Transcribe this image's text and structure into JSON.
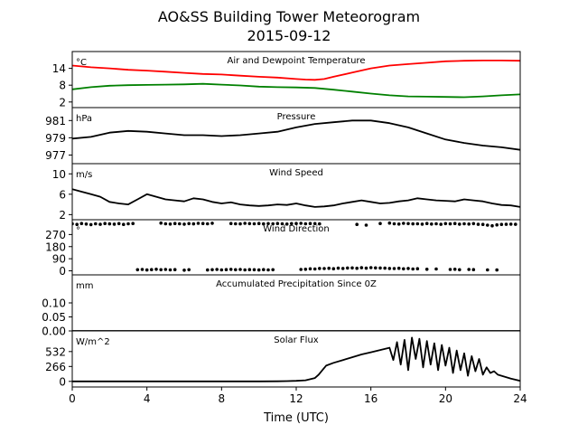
{
  "chart_data": {
    "type": "line",
    "title": "AO&SS Building Tower Meteorogram",
    "subtitle": "2015-09-12",
    "xlabel": "Time (UTC)",
    "xlim": [
      0,
      24
    ],
    "xticks": [
      "0",
      "4",
      "8",
      "12",
      "16",
      "20",
      "24"
    ],
    "panels": [
      {
        "id": "temperature",
        "title": "Air and Dewpoint Temperature",
        "unit": "°C",
        "ylim": [
          0,
          20
        ],
        "yticks": [
          "14",
          "8",
          "2"
        ],
        "series": [
          {
            "color": "#ff0000",
            "x": [
              0,
              1,
              2,
              3,
              4,
              5,
              6,
              7,
              8,
              9,
              10,
              11,
              12,
              12.5,
              13,
              13.5,
              14,
              15,
              16,
              17,
              18,
              19,
              20,
              21,
              22,
              23,
              24
            ],
            "y": [
              15,
              14.4,
              14,
              13.5,
              13.2,
              12.8,
              12.4,
              12,
              11.8,
              11.4,
              11,
              10.7,
              10.2,
              10,
              9.9,
              10.2,
              11,
              12.5,
              14,
              15,
              15.5,
              16,
              16.5,
              16.7,
              16.8,
              16.8,
              16.7
            ]
          },
          {
            "color": "#008000",
            "x": [
              0,
              1,
              2,
              3,
              4,
              5,
              6,
              7,
              8,
              9,
              10,
              11,
              12,
              13,
              14,
              15,
              16,
              17,
              18,
              19,
              20,
              21,
              22,
              23,
              24
            ],
            "y": [
              6.5,
              7.3,
              7.8,
              8,
              8.1,
              8.2,
              8.3,
              8.5,
              8.2,
              7.9,
              7.5,
              7.3,
              7.2,
              7,
              6.4,
              5.7,
              5,
              4.4,
              4,
              3.9,
              3.8,
              3.7,
              4,
              4.4,
              4.7
            ]
          }
        ]
      },
      {
        "id": "pressure",
        "title": "Pressure",
        "unit": "hPa",
        "ylim": [
          976,
          982.5
        ],
        "yticks": [
          "981",
          "979",
          "977"
        ],
        "series": [
          {
            "color": "#000000",
            "x": [
              0,
              1,
              2,
              3,
              4,
              5,
              6,
              7,
              8,
              9,
              10,
              11,
              12,
              13,
              14,
              15,
              16,
              17,
              18,
              19,
              20,
              21,
              22,
              23,
              24
            ],
            "y": [
              978.9,
              979.1,
              979.6,
              979.8,
              979.7,
              979.5,
              979.3,
              979.3,
              979.2,
              979.3,
              979.5,
              979.7,
              980.2,
              980.6,
              980.8,
              981,
              981,
              980.7,
              980.2,
              979.5,
              978.8,
              978.4,
              978.1,
              977.9,
              977.6
            ]
          }
        ]
      },
      {
        "id": "wind-speed",
        "title": "Wind Speed",
        "unit": "m/s",
        "ylim": [
          1,
          12
        ],
        "yticks": [
          "10",
          "6",
          "2"
        ],
        "series": [
          {
            "color": "#000000",
            "x": [
              0,
              0.5,
              1,
              1.5,
              2,
              2.5,
              3,
              3.5,
              4,
              4.5,
              5,
              5.5,
              6,
              6.5,
              7,
              7.5,
              8,
              8.5,
              9,
              9.5,
              10,
              10.5,
              11,
              11.5,
              12,
              12.5,
              13,
              13.5,
              14,
              14.5,
              15,
              15.5,
              16,
              16.5,
              17,
              17.5,
              18,
              18.5,
              19,
              19.5,
              20,
              20.5,
              21,
              21.5,
              22,
              22.5,
              23,
              23.5,
              24
            ],
            "y": [
              7,
              6.5,
              6,
              5.5,
              4.5,
              4.2,
              4,
              5,
              6,
              5.5,
              5,
              4.8,
              4.6,
              5.2,
              5,
              4.5,
              4.2,
              4.4,
              4,
              3.8,
              3.7,
              3.8,
              4,
              3.9,
              4.2,
              3.8,
              3.5,
              3.6,
              3.8,
              4.2,
              4.5,
              4.8,
              4.5,
              4.2,
              4.3,
              4.6,
              4.8,
              5.2,
              5,
              4.8,
              4.7,
              4.6,
              5,
              4.8,
              4.6,
              4.2,
              3.9,
              3.8,
              3.5
            ]
          }
        ]
      },
      {
        "id": "wind-direction",
        "title": "Wind Direction",
        "unit": "°",
        "ylim": [
          -30,
          380
        ],
        "yticks": [
          "270",
          "180",
          "90",
          "0"
        ],
        "series": [
          {
            "color": "#000000",
            "style": "scatter",
            "x": [
              0,
              0.25,
              0.5,
              0.75,
              1,
              1.25,
              1.5,
              1.75,
              2,
              2.25,
              2.5,
              2.75,
              3,
              3.25,
              4.75,
              5,
              5.25,
              5.5,
              5.75,
              6,
              6.25,
              6.5,
              6.75,
              7,
              7.25,
              7.5,
              8.5,
              8.75,
              9,
              9.25,
              9.5,
              9.75,
              10,
              10.25,
              10.5,
              10.75,
              11,
              11.25,
              11.5,
              11.75,
              12,
              12.25,
              12.5,
              12.75,
              13,
              13.25,
              15.25,
              15.75,
              16.5,
              17,
              17.25,
              17.5,
              17.75,
              18,
              18.25,
              18.5,
              18.75,
              19,
              19.25,
              19.5,
              19.75,
              20,
              20.25,
              20.5,
              20.75,
              21,
              21.25,
              21.5,
              21.75,
              22,
              22.25,
              22.5,
              22.75,
              23,
              23.25,
              23.5,
              23.75
            ],
            "y": [
              350,
              345,
              352,
              348,
              344,
              350,
              346,
              352,
              349,
              347,
              351,
              345,
              350,
              352,
              355,
              350,
              348,
              352,
              350,
              347,
              351,
              349,
              353,
              352,
              350,
              354,
              352,
              350,
              349,
              353,
              351,
              350,
              352,
              349,
              351,
              350,
              352,
              350,
              348,
              351,
              352,
              353,
              350,
              352,
              351,
              349,
              345,
              340,
              352,
              355,
              350,
              348,
              353,
              351,
              349,
              350,
              347,
              352,
              348,
              350,
              346,
              351,
              349,
              352,
              347,
              350,
              348,
              351,
              346,
              345,
              340,
              335,
              342,
              345,
              346,
              347,
              346
            ]
          },
          {
            "color": "#000000",
            "style": "scatter",
            "x": [
              3.5,
              3.75,
              4,
              4.25,
              4.5,
              4.75,
              5,
              5.25,
              5.5,
              6,
              6.25,
              7.25,
              7.5,
              7.75,
              8,
              8.25,
              8.5,
              8.75,
              9,
              9.25,
              9.5,
              9.75,
              10,
              10.25,
              10.5,
              10.75,
              12.25,
              12.5,
              12.75,
              13,
              13.25,
              13.5,
              13.75,
              14,
              14.25,
              14.5,
              14.75,
              15,
              15.25,
              15.5,
              15.75,
              16,
              16.25,
              16.5,
              16.75,
              17,
              17.25,
              17.5,
              17.75,
              18,
              18.25,
              18.5,
              19,
              19.5,
              20.25,
              20.5,
              20.75,
              21.25,
              21.5,
              22.25,
              22.75
            ],
            "y": [
              8,
              10,
              6,
              9,
              12,
              8,
              10,
              7,
              9,
              5,
              8,
              6,
              8,
              10,
              7,
              9,
              11,
              8,
              10,
              7,
              9,
              8,
              6,
              9,
              7,
              8,
              10,
              12,
              15,
              14,
              18,
              17,
              19,
              16,
              20,
              18,
              21,
              22,
              19,
              23,
              20,
              24,
              22,
              21,
              20,
              18,
              17,
              19,
              15,
              18,
              14,
              16,
              12,
              14,
              10,
              12,
              8,
              10,
              9,
              7,
              6
            ]
          }
        ]
      },
      {
        "id": "precipitation",
        "title": "Accumulated Precipitation Since 0Z",
        "unit": "mm",
        "ylim": [
          0,
          0.2
        ],
        "yticks": [
          "0.10",
          "0.05",
          "0.00"
        ],
        "series": [
          {
            "color": "#000000",
            "x": [
              0,
              24
            ],
            "y": [
              0,
              0
            ]
          }
        ]
      },
      {
        "id": "solar-flux",
        "title": "Solar Flux",
        "unit": "W/m^2",
        "ylim": [
          -100,
          900
        ],
        "yticks": [
          "532",
          "266",
          "0"
        ],
        "series": [
          {
            "color": "#000000",
            "x": [
              0,
              1,
              2,
              3,
              4,
              5,
              6,
              7,
              8,
              9,
              10,
              11,
              11.5,
              12,
              12.5,
              13,
              13.2,
              13.4,
              13.6,
              14,
              14.5,
              15,
              15.5,
              16,
              16.5,
              17,
              17.2,
              17.4,
              17.6,
              17.8,
              18,
              18.2,
              18.4,
              18.6,
              18.8,
              19,
              19.2,
              19.4,
              19.6,
              19.8,
              20,
              20.2,
              20.4,
              20.6,
              20.8,
              21,
              21.2,
              21.4,
              21.6,
              21.8,
              22,
              22.2,
              22.4,
              22.6,
              22.8,
              23,
              23.5,
              24
            ],
            "y": [
              0,
              0,
              0,
              0,
              0,
              0,
              0,
              0,
              0,
              0,
              0,
              2,
              5,
              10,
              20,
              60,
              120,
              200,
              280,
              330,
              380,
              430,
              480,
              520,
              560,
              600,
              380,
              700,
              300,
              740,
              200,
              780,
              400,
              760,
              250,
              720,
              300,
              680,
              200,
              650,
              280,
              600,
              150,
              550,
              200,
              500,
              100,
              450,
              180,
              400,
              120,
              250,
              150,
              180,
              120,
              100,
              50,
              10
            ]
          }
        ]
      }
    ]
  }
}
